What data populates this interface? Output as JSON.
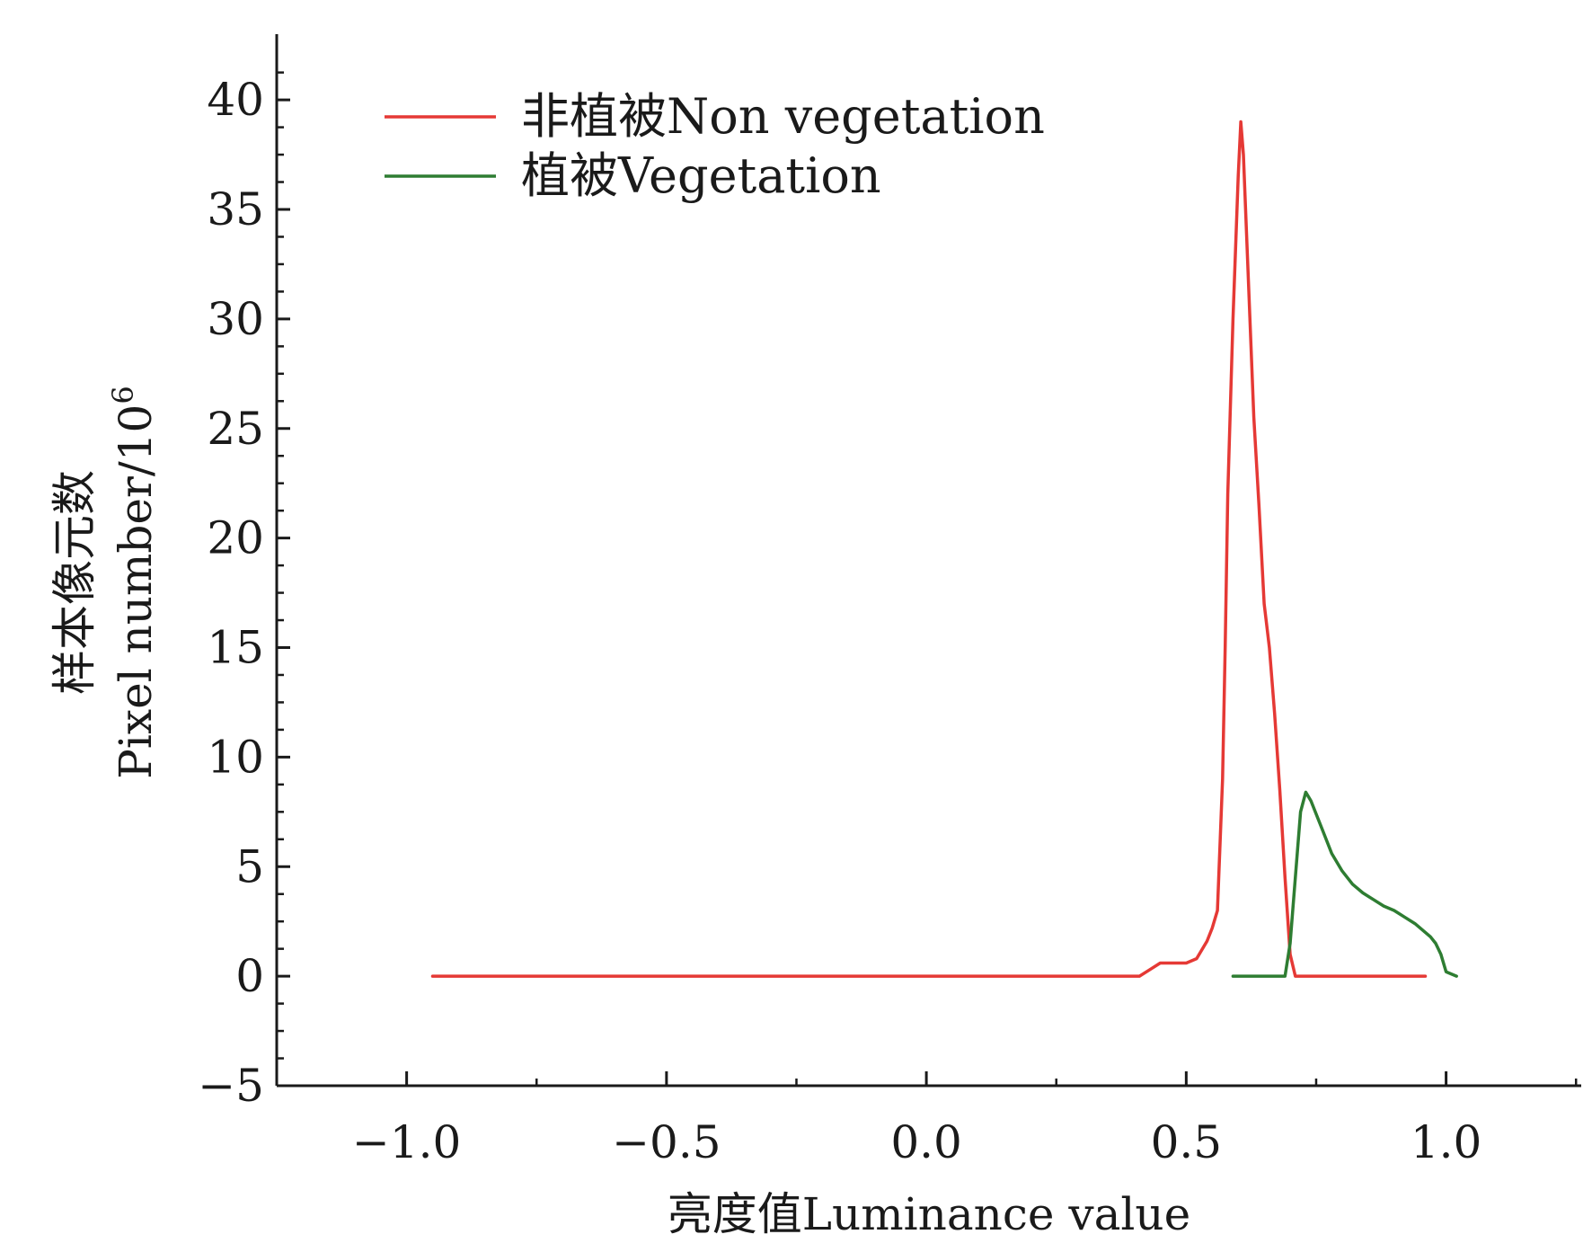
{
  "chart_data": {
    "type": "line",
    "xlabel": "亮度值Luminance value",
    "ylabel_line1": "样本像元数",
    "ylabel_line2": "Pixel number/10",
    "ylabel_superscript": "6",
    "xlim": [
      -1.25,
      1.26
    ],
    "ylim": [
      -5,
      43
    ],
    "x_ticks": [
      -1.0,
      -0.5,
      0.0,
      0.5,
      1.0
    ],
    "x_tick_labels": [
      "−1.0",
      "−0.5",
      "0.0",
      "0.5",
      "1.0"
    ],
    "y_ticks": [
      -5,
      0,
      5,
      10,
      15,
      20,
      25,
      30,
      35,
      40
    ],
    "y_tick_labels": [
      "−5",
      "0",
      "5",
      "10",
      "15",
      "20",
      "25",
      "30",
      "35",
      "40"
    ],
    "legend_position": "top-left",
    "series": [
      {
        "name": "非植被Non vegetation",
        "color": "#e53935",
        "x": [
          -0.95,
          0.41,
          0.43,
          0.45,
          0.47,
          0.5,
          0.52,
          0.54,
          0.55,
          0.56,
          0.57,
          0.575,
          0.58,
          0.59,
          0.6,
          0.605,
          0.61,
          0.62,
          0.63,
          0.64,
          0.65,
          0.66,
          0.67,
          0.68,
          0.69,
          0.7,
          0.71,
          0.72,
          0.73,
          0.96
        ],
        "y": [
          0,
          0,
          0.3,
          0.6,
          0.6,
          0.6,
          0.8,
          1.6,
          2.2,
          3.0,
          9.0,
          15.0,
          22.0,
          30.0,
          36.5,
          39.0,
          37.5,
          31.5,
          25.5,
          21.5,
          17.0,
          15.0,
          12.0,
          8.5,
          4.5,
          1.0,
          0.0,
          0.0,
          0.0,
          0.0
        ]
      },
      {
        "name": "植被Vegetation",
        "color": "#2e7d32",
        "x": [
          0.59,
          0.69,
          0.7,
          0.71,
          0.72,
          0.73,
          0.74,
          0.76,
          0.78,
          0.8,
          0.82,
          0.84,
          0.86,
          0.88,
          0.9,
          0.92,
          0.94,
          0.96,
          0.97,
          0.98,
          0.99,
          1.0,
          1.02
        ],
        "y": [
          0,
          0,
          1.5,
          4.5,
          7.5,
          8.4,
          8.0,
          6.8,
          5.6,
          4.8,
          4.2,
          3.8,
          3.5,
          3.2,
          3.0,
          2.7,
          2.4,
          2.0,
          1.8,
          1.5,
          1.0,
          0.2,
          0.0
        ]
      }
    ]
  }
}
